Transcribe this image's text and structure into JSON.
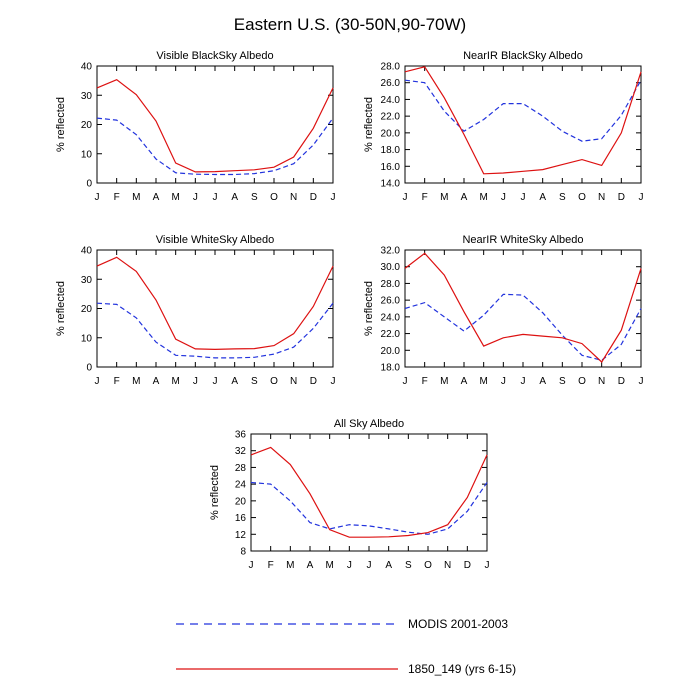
{
  "title": "Eastern U.S. (30-50N,90-70W)",
  "months": [
    "J",
    "F",
    "M",
    "A",
    "M",
    "J",
    "J",
    "A",
    "S",
    "O",
    "N",
    "D",
    "J"
  ],
  "colors": {
    "modis": "#2233dd",
    "model": "#dd1111",
    "axis": "#000000"
  },
  "legend": {
    "modis": "MODIS 2001-2003",
    "model": "1850_149 (yrs 6-15)"
  },
  "chart_data": [
    {
      "type": "line",
      "title": "Visible BlackSky Albedo",
      "ylabel": "% reflected",
      "ylim": [
        0,
        40
      ],
      "yticks": [
        0,
        10,
        20,
        30,
        40
      ],
      "ytick_labels": [
        "0",
        "10",
        "20",
        "30",
        "40"
      ],
      "categories": [
        "J",
        "F",
        "M",
        "A",
        "M",
        "J",
        "J",
        "A",
        "S",
        "O",
        "N",
        "D",
        "J"
      ],
      "series": [
        {
          "name": "MODIS 2001-2003",
          "style": "dashed",
          "values": [
            22.2,
            21.5,
            16.5,
            8.2,
            3.5,
            3.0,
            2.9,
            2.9,
            3.2,
            4.2,
            6.6,
            13.0,
            22.2
          ]
        },
        {
          "name": "1850_149 (yrs 6-15)",
          "style": "solid",
          "values": [
            32.5,
            35.3,
            30.2,
            21.2,
            6.8,
            3.8,
            3.9,
            4.2,
            4.5,
            5.4,
            8.9,
            18.7,
            32.5
          ]
        }
      ]
    },
    {
      "type": "line",
      "title": "NearIR BlackSky Albedo",
      "ylabel": "% reflected",
      "ylim": [
        14,
        28
      ],
      "yticks": [
        14,
        16,
        18,
        20,
        22,
        24,
        26,
        28
      ],
      "ytick_labels": [
        "14.0",
        "16.0",
        "18.0",
        "20.0",
        "22.0",
        "24.0",
        "26.0",
        "28.0"
      ],
      "categories": [
        "J",
        "F",
        "M",
        "A",
        "M",
        "J",
        "J",
        "A",
        "S",
        "O",
        "N",
        "D",
        "J"
      ],
      "series": [
        {
          "name": "MODIS 2001-2003",
          "style": "dashed",
          "values": [
            26.3,
            26.0,
            22.6,
            20.2,
            21.6,
            23.5,
            23.5,
            22.0,
            20.2,
            19.0,
            19.3,
            22.1,
            26.3
          ]
        },
        {
          "name": "1850_149 (yrs 6-15)",
          "style": "solid",
          "values": [
            27.3,
            27.9,
            24.2,
            19.8,
            15.1,
            15.2,
            15.4,
            15.6,
            16.2,
            16.8,
            16.1,
            20.0,
            27.3
          ]
        }
      ]
    },
    {
      "type": "line",
      "title": "Visible WhiteSky Albedo",
      "ylabel": "% reflected",
      "ylim": [
        0,
        40
      ],
      "yticks": [
        0,
        10,
        20,
        30,
        40
      ],
      "ytick_labels": [
        "0",
        "10",
        "20",
        "30",
        "40"
      ],
      "categories": [
        "J",
        "F",
        "M",
        "A",
        "M",
        "J",
        "J",
        "A",
        "S",
        "O",
        "N",
        "D",
        "J"
      ],
      "series": [
        {
          "name": "MODIS 2001-2003",
          "style": "dashed",
          "values": [
            21.8,
            21.4,
            16.8,
            8.5,
            4.0,
            3.7,
            3.1,
            3.1,
            3.3,
            4.4,
            6.8,
            13.2,
            21.8
          ]
        },
        {
          "name": "1850_149 (yrs 6-15)",
          "style": "solid",
          "values": [
            34.5,
            37.5,
            32.7,
            22.9,
            9.5,
            6.2,
            6.0,
            6.2,
            6.3,
            7.3,
            11.4,
            20.7,
            34.5
          ]
        }
      ]
    },
    {
      "type": "line",
      "title": "NearIR WhiteSky Albedo",
      "ylabel": "% reflected",
      "ylim": [
        18,
        32
      ],
      "yticks": [
        18,
        20,
        22,
        24,
        26,
        28,
        30,
        32
      ],
      "ytick_labels": [
        "18.0",
        "20.0",
        "22.0",
        "24.0",
        "26.0",
        "28.0",
        "30.0",
        "32.0"
      ],
      "categories": [
        "J",
        "F",
        "M",
        "A",
        "M",
        "J",
        "J",
        "A",
        "S",
        "O",
        "N",
        "D",
        "J"
      ],
      "series": [
        {
          "name": "MODIS 2001-2003",
          "style": "dashed",
          "values": [
            25.0,
            25.7,
            24.0,
            22.3,
            24.2,
            26.7,
            26.6,
            24.5,
            21.8,
            19.4,
            18.8,
            20.7,
            25.0
          ]
        },
        {
          "name": "1850_149 (yrs 6-15)",
          "style": "solid",
          "values": [
            29.8,
            31.6,
            29.0,
            24.6,
            20.5,
            21.5,
            21.9,
            21.7,
            21.5,
            20.8,
            18.6,
            22.4,
            29.8
          ]
        }
      ]
    },
    {
      "type": "line",
      "title": "All Sky Albedo",
      "ylabel": "% reflected",
      "ylim": [
        8,
        36
      ],
      "yticks": [
        8,
        12,
        16,
        20,
        24,
        28,
        32,
        36
      ],
      "ytick_labels": [
        "8",
        "12",
        "16",
        "20",
        "24",
        "28",
        "32",
        "36"
      ],
      "categories": [
        "J",
        "F",
        "M",
        "A",
        "M",
        "J",
        "J",
        "A",
        "S",
        "O",
        "N",
        "D",
        "J"
      ],
      "series": [
        {
          "name": "MODIS 2001-2003",
          "style": "dashed",
          "values": [
            24.4,
            24.0,
            20.0,
            14.8,
            13.3,
            14.3,
            14.0,
            13.3,
            12.5,
            12.0,
            13.3,
            17.5,
            24.4
          ]
        },
        {
          "name": "1850_149 (yrs 6-15)",
          "style": "solid",
          "values": [
            31.0,
            32.8,
            28.7,
            21.7,
            13.1,
            11.3,
            11.3,
            11.4,
            11.7,
            12.4,
            14.3,
            20.8,
            31.0
          ]
        }
      ]
    }
  ]
}
